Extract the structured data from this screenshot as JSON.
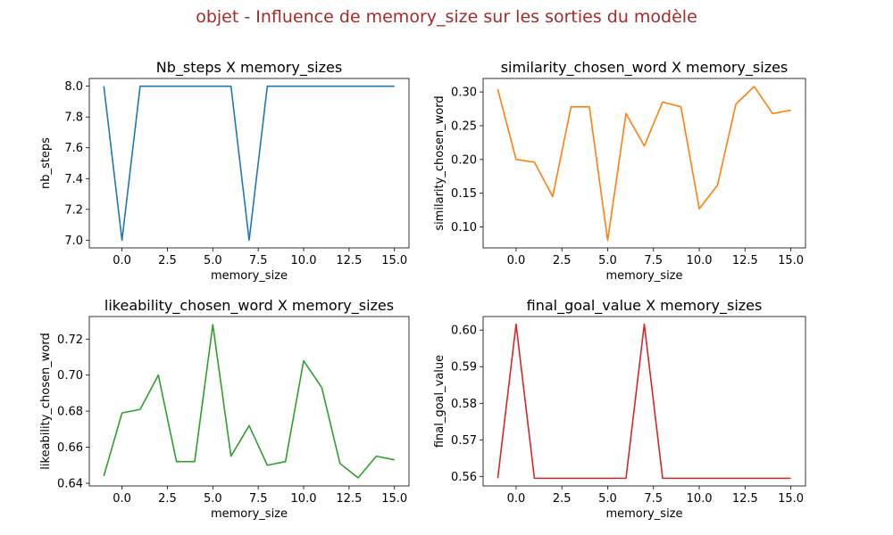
{
  "figure": {
    "suptitle": "objet - Influence de memory_size sur les sorties du modèle"
  },
  "chart_data": [
    {
      "type": "line",
      "title": "Nb_steps X memory_sizes",
      "xlabel": "memory_size",
      "ylabel": "nb_steps",
      "color": "#1f77b4",
      "x": [
        -1,
        0,
        1,
        2,
        3,
        4,
        5,
        6,
        7,
        8,
        9,
        10,
        11,
        12,
        13,
        14,
        15
      ],
      "y": [
        8,
        7,
        8,
        8,
        8,
        8,
        8,
        8,
        7,
        8,
        8,
        8,
        8,
        8,
        8,
        8,
        8
      ],
      "xlim": [
        -1.8,
        15.8
      ],
      "ylim": [
        6.95,
        8.05
      ],
      "xticks": [
        0.0,
        2.5,
        5.0,
        7.5,
        10.0,
        12.5,
        15.0
      ],
      "xtick_labels": [
        "0.0",
        "2.5",
        "5.0",
        "7.5",
        "10.0",
        "12.5",
        "15.0"
      ],
      "yticks": [
        7.0,
        7.2,
        7.4,
        7.6,
        7.8,
        8.0
      ],
      "ytick_labels": [
        "7.0",
        "7.2",
        "7.4",
        "7.6",
        "7.8",
        "8.0"
      ]
    },
    {
      "type": "line",
      "title": "similarity_chosen_word X memory_sizes",
      "xlabel": "memory_size",
      "ylabel": "similarity_chosen_word",
      "color": "#ff7f0e",
      "x": [
        -1,
        0,
        1,
        2,
        3,
        4,
        5,
        6,
        7,
        8,
        9,
        10,
        11,
        12,
        13,
        14,
        15
      ],
      "y": [
        0.304,
        0.2,
        0.196,
        0.145,
        0.278,
        0.278,
        0.08,
        0.268,
        0.22,
        0.285,
        0.278,
        0.127,
        0.162,
        0.282,
        0.308,
        0.268,
        0.273
      ],
      "xlim": [
        -1.8,
        15.8
      ],
      "ylim": [
        0.069,
        0.32
      ],
      "xticks": [
        0.0,
        2.5,
        5.0,
        7.5,
        10.0,
        12.5,
        15.0
      ],
      "xtick_labels": [
        "0.0",
        "2.5",
        "5.0",
        "7.5",
        "10.0",
        "12.5",
        "15.0"
      ],
      "yticks": [
        0.1,
        0.15,
        0.2,
        0.25,
        0.3
      ],
      "ytick_labels": [
        "0.10",
        "0.15",
        "0.20",
        "0.25",
        "0.30"
      ]
    },
    {
      "type": "line",
      "title": "likeability_chosen_word X memory_sizes",
      "xlabel": "memory_size",
      "ylabel": "likeability_chosen_word",
      "color": "#2ca02c",
      "x": [
        -1,
        0,
        1,
        2,
        3,
        4,
        5,
        6,
        7,
        8,
        9,
        10,
        11,
        12,
        13,
        14,
        15
      ],
      "y": [
        0.644,
        0.679,
        0.681,
        0.7,
        0.652,
        0.652,
        0.728,
        0.655,
        0.672,
        0.65,
        0.652,
        0.708,
        0.693,
        0.651,
        0.643,
        0.655,
        0.653
      ],
      "xlim": [
        -1.8,
        15.8
      ],
      "ylim": [
        0.6385,
        0.7325
      ],
      "xticks": [
        0.0,
        2.5,
        5.0,
        7.5,
        10.0,
        12.5,
        15.0
      ],
      "xtick_labels": [
        "0.0",
        "2.5",
        "5.0",
        "7.5",
        "10.0",
        "12.5",
        "15.0"
      ],
      "yticks": [
        0.64,
        0.66,
        0.68,
        0.7,
        0.72
      ],
      "ytick_labels": [
        "0.64",
        "0.66",
        "0.68",
        "0.70",
        "0.72"
      ]
    },
    {
      "type": "line",
      "title": "final_goal_value X memory_sizes",
      "xlabel": "memory_size",
      "ylabel": "final_goal_value",
      "color": "#d62728",
      "x": [
        -1,
        0,
        1,
        2,
        3,
        4,
        5,
        6,
        7,
        8,
        9,
        10,
        11,
        12,
        13,
        14,
        15
      ],
      "y": [
        0.5595,
        0.6016,
        0.5595,
        0.5595,
        0.5595,
        0.5595,
        0.5595,
        0.5595,
        0.6016,
        0.5595,
        0.5595,
        0.5595,
        0.5595,
        0.5595,
        0.5595,
        0.5595,
        0.5595
      ],
      "xlim": [
        -1.8,
        15.8
      ],
      "ylim": [
        0.5574,
        0.6037
      ],
      "xticks": [
        0.0,
        2.5,
        5.0,
        7.5,
        10.0,
        12.5,
        15.0
      ],
      "xtick_labels": [
        "0.0",
        "2.5",
        "5.0",
        "7.5",
        "10.0",
        "12.5",
        "15.0"
      ],
      "yticks": [
        0.56,
        0.57,
        0.58,
        0.59,
        0.6
      ],
      "ytick_labels": [
        "0.56",
        "0.57",
        "0.58",
        "0.59",
        "0.60"
      ]
    }
  ]
}
